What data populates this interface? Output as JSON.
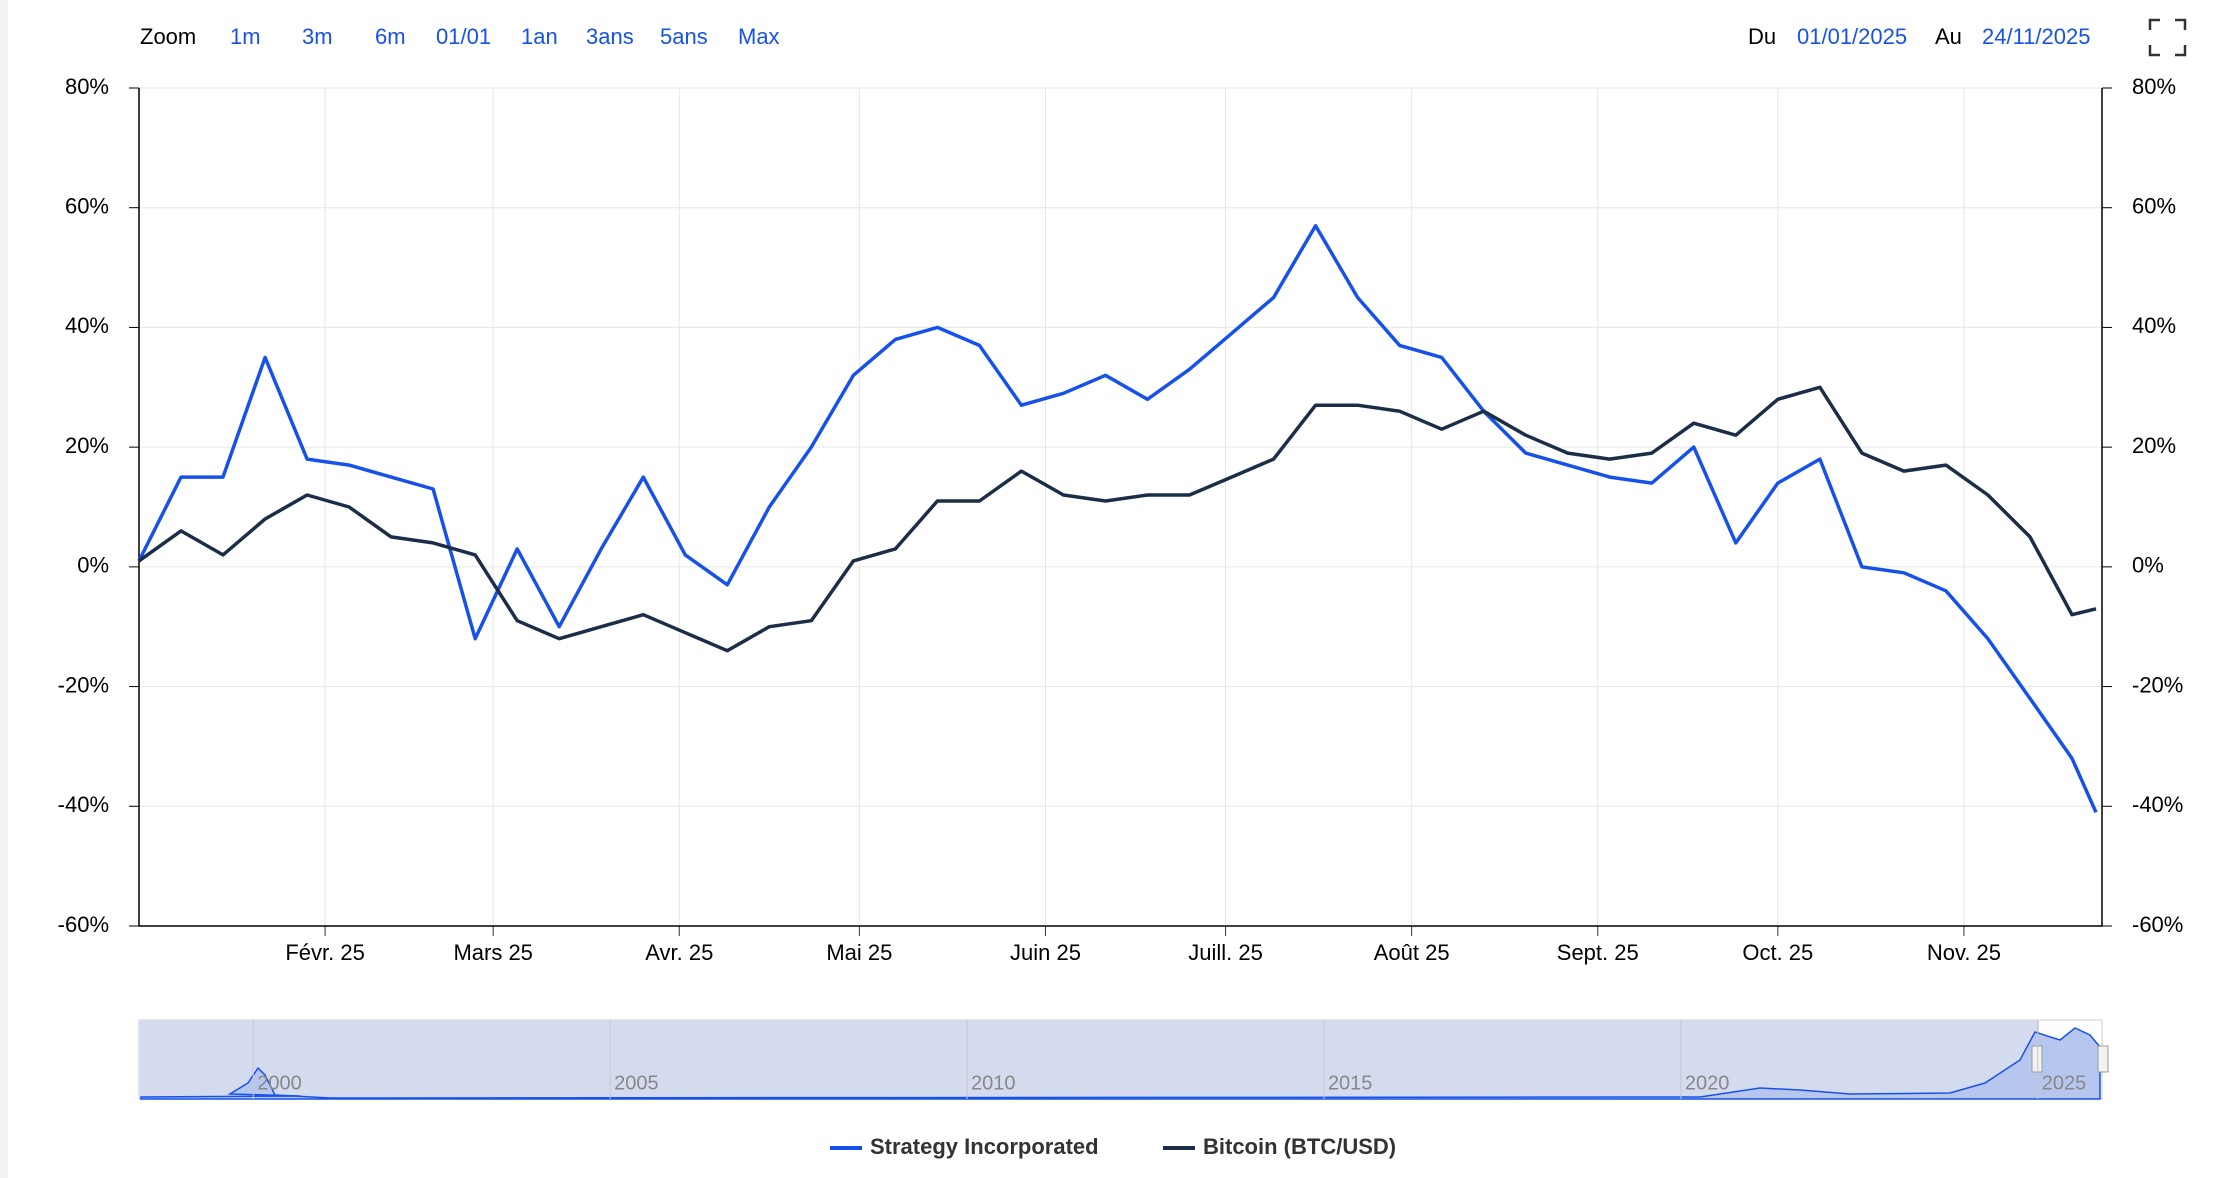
{
  "toolbar": {
    "zoom_label": "Zoom",
    "buttons": [
      "1m",
      "3m",
      "6m",
      "01/01",
      "1an",
      "3ans",
      "5ans",
      "Max"
    ],
    "from_label": "Du",
    "from": "01/01/2025",
    "to_label": "Au",
    "to": "24/11/2025"
  },
  "chart_data": {
    "type": "line",
    "x": [
      0,
      7,
      14,
      21,
      28,
      35,
      42,
      49,
      56,
      63,
      70,
      77,
      84,
      91,
      98,
      105,
      112,
      119,
      126,
      133,
      140,
      147,
      154,
      161,
      168,
      175,
      182,
      189,
      196,
      203,
      210,
      217,
      224,
      231,
      238,
      245,
      252,
      259,
      266,
      273,
      280,
      287,
      294,
      301,
      308,
      315,
      322,
      326
    ],
    "xlim": [
      0,
      327
    ],
    "xticks": [
      {
        "value": 31,
        "label": "Févr. 25"
      },
      {
        "value": 59,
        "label": "Mars 25"
      },
      {
        "value": 90,
        "label": "Avr. 25"
      },
      {
        "value": 120,
        "label": "Mai 25"
      },
      {
        "value": 151,
        "label": "Juin 25"
      },
      {
        "value": 181,
        "label": "Juill. 25"
      },
      {
        "value": 212,
        "label": "Août 25"
      },
      {
        "value": 243,
        "label": "Sept. 25"
      },
      {
        "value": 273,
        "label": "Oct. 25"
      },
      {
        "value": 304,
        "label": "Nov. 25"
      }
    ],
    "ylim": [
      -60,
      80
    ],
    "yticks": [
      {
        "value": -60,
        "label": "-60%"
      },
      {
        "value": -40,
        "label": "-40%"
      },
      {
        "value": -20,
        "label": "-20%"
      },
      {
        "value": 0,
        "label": "0%"
      },
      {
        "value": 20,
        "label": "20%"
      },
      {
        "value": 40,
        "label": "40%"
      },
      {
        "value": 60,
        "label": "60%"
      },
      {
        "value": 80,
        "label": "80%"
      }
    ],
    "y2lim": [
      -60,
      80
    ],
    "y2ticks": [
      {
        "value": -60,
        "label": "-60%"
      },
      {
        "value": -40,
        "label": "-40%"
      },
      {
        "value": -20,
        "label": "-20%"
      },
      {
        "value": 0,
        "label": "0%"
      },
      {
        "value": 20,
        "label": "20%"
      },
      {
        "value": 40,
        "label": "40%"
      },
      {
        "value": 60,
        "label": "60%"
      },
      {
        "value": 80,
        "label": "80%"
      }
    ],
    "grid": true,
    "series": [
      {
        "name": "Strategy Incorporated",
        "color": "#1652ea",
        "values": [
          1,
          15,
          15,
          35,
          18,
          17,
          15,
          13,
          -12,
          3,
          -10,
          3,
          15,
          2,
          -3,
          10,
          20,
          32,
          38,
          40,
          37,
          27,
          29,
          32,
          28,
          33,
          39,
          45,
          57,
          45,
          37,
          35,
          26,
          19,
          17,
          15,
          14,
          20,
          4,
          14,
          18,
          0,
          -1,
          -4,
          -12,
          -22,
          -32,
          -41
        ]
      },
      {
        "name": "Bitcoin (BTC/USD)",
        "color": "#1b2d47",
        "values": [
          1,
          6,
          2,
          8,
          12,
          10,
          5,
          4,
          2,
          -9,
          -12,
          -10,
          -8,
          -11,
          -14,
          -10,
          -9,
          1,
          3,
          11,
          11,
          16,
          12,
          11,
          12,
          12,
          15,
          18,
          27,
          27,
          26,
          23,
          26,
          22,
          19,
          18,
          19,
          24,
          22,
          28,
          30,
          19,
          16,
          17,
          12,
          5,
          -8,
          -7
        ]
      }
    ],
    "navigator": {
      "xlim": [
        1998.4,
        2025.9
      ],
      "xticks": [
        2000,
        2005,
        2010,
        2015,
        2020,
        2025
      ]
    }
  }
}
